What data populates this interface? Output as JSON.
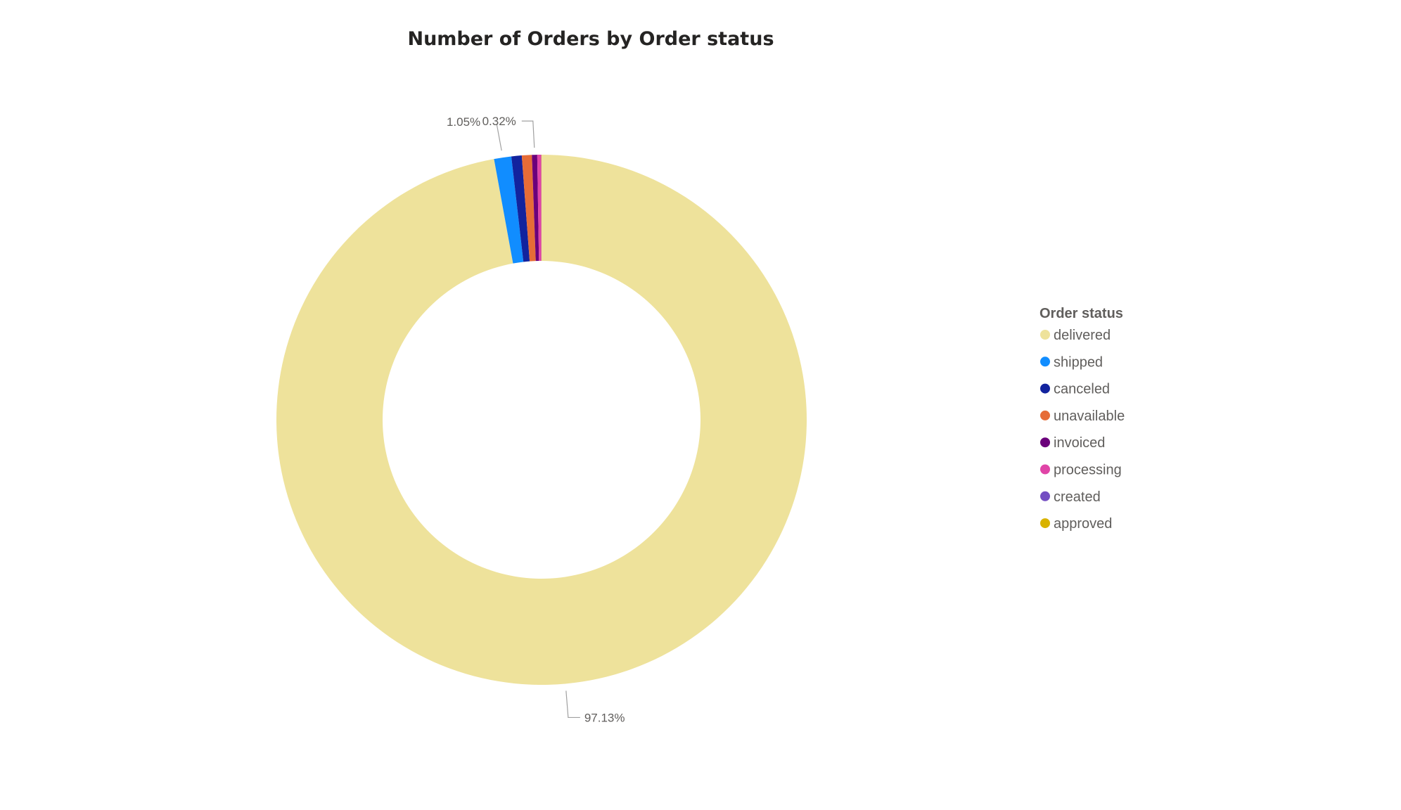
{
  "chart_data": {
    "type": "pie",
    "variant": "donut",
    "title": "Number of Orders by Order status",
    "legend_title": "Order status",
    "legend_position": "right",
    "categories": [
      "delivered",
      "shipped",
      "canceled",
      "unavailable",
      "invoiced",
      "processing",
      "created",
      "approved"
    ],
    "values": [
      97.13,
      1.05,
      0.63,
      0.61,
      0.32,
      0.24,
      0.01,
      0.01
    ],
    "colors": [
      "#EEE29B",
      "#118DFF",
      "#12239E",
      "#E66C37",
      "#6B007B",
      "#E044A7",
      "#744EC2",
      "#D9B300"
    ],
    "data_labels": [
      {
        "category": "delivered",
        "text": "97.13%"
      },
      {
        "category": "shipped",
        "text": "1.05%"
      },
      {
        "category": "invoiced",
        "text": "0.32%"
      }
    ]
  }
}
